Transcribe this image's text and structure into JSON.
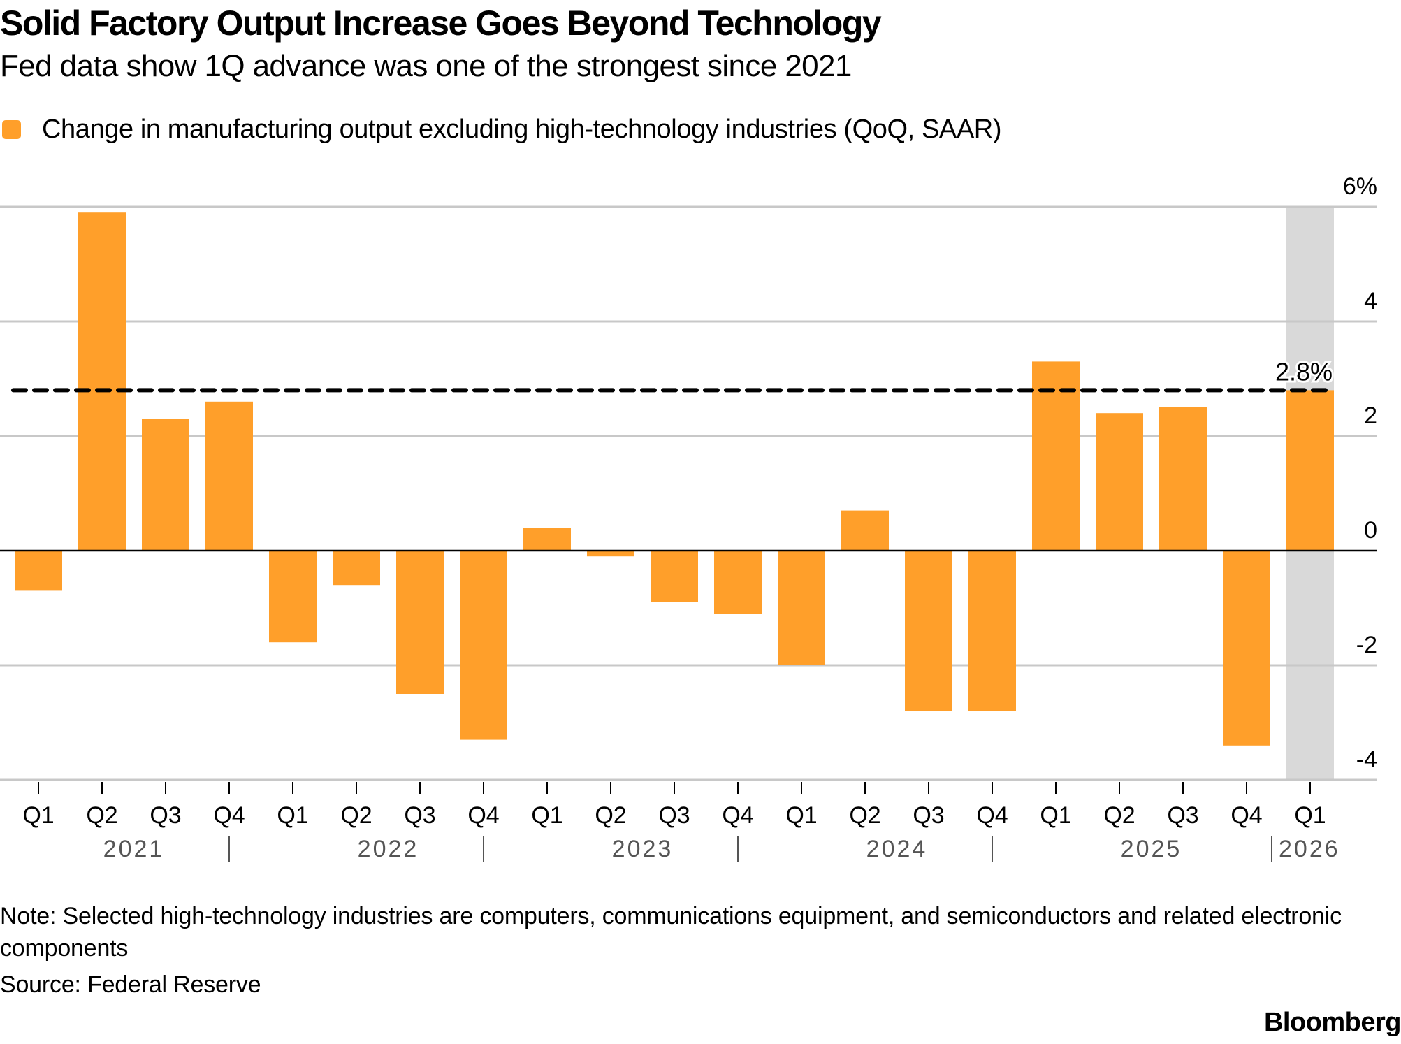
{
  "header": {
    "title": "Solid Factory Output Increase Goes Beyond Technology",
    "subtitle": "Fed data show 1Q advance was one of the strongest since 2021"
  },
  "legend": {
    "label": "Change in manufacturing output excluding high-technology industries (QoQ, SAAR)",
    "color": "#FF9F2A"
  },
  "footer": {
    "note": "Note: Selected high-technology industries are computers, communications equipment, and semiconductors and related electronic components",
    "source": "Source: Federal Reserve",
    "brand": "Bloomberg"
  },
  "chart_data": {
    "type": "bar",
    "title": "Solid Factory Output Increase Goes Beyond Technology",
    "subtitle": "Fed data show 1Q advance was one of the strongest since 2021",
    "xlabel": "",
    "ylabel": "",
    "ylim": [
      -4,
      6
    ],
    "yticks": [
      {
        "value": 6,
        "label": "6%"
      },
      {
        "value": 4,
        "label": "4"
      },
      {
        "value": 2,
        "label": "2"
      },
      {
        "value": 0,
        "label": "0"
      },
      {
        "value": -2,
        "label": "-2"
      },
      {
        "value": -4,
        "label": "-4"
      }
    ],
    "y_axis_side": "right",
    "grid": true,
    "legend_position": "top-left",
    "categories": [
      "Q1",
      "Q2",
      "Q3",
      "Q4",
      "Q1",
      "Q2",
      "Q3",
      "Q4",
      "Q1",
      "Q2",
      "Q3",
      "Q4",
      "Q1",
      "Q2",
      "Q3",
      "Q4",
      "Q1",
      "Q2",
      "Q3",
      "Q4",
      "Q1"
    ],
    "years": [
      {
        "label": "2021",
        "start": 0,
        "end": 3
      },
      {
        "label": "2022",
        "start": 4,
        "end": 7
      },
      {
        "label": "2023",
        "start": 8,
        "end": 11
      },
      {
        "label": "2024",
        "start": 12,
        "end": 15
      },
      {
        "label": "2025",
        "start": 16,
        "end": 19
      },
      {
        "label": "2026",
        "start": 20,
        "end": 20
      }
    ],
    "series": [
      {
        "name": "Change in manufacturing output excluding high-technology industries (QoQ, SAAR)",
        "color": "#FF9F2A",
        "values": [
          -0.7,
          5.9,
          2.3,
          2.6,
          -1.6,
          -0.6,
          -2.5,
          -3.3,
          0.4,
          -0.1,
          -0.9,
          -1.1,
          -2.0,
          0.7,
          -2.8,
          -2.8,
          3.3,
          2.4,
          2.5,
          -3.4,
          2.8
        ]
      }
    ],
    "reference_line": {
      "value": 2.8,
      "label": "2.8%",
      "style": "dashed"
    },
    "highlight": {
      "index": 20,
      "color": "#D9D9D9"
    }
  }
}
